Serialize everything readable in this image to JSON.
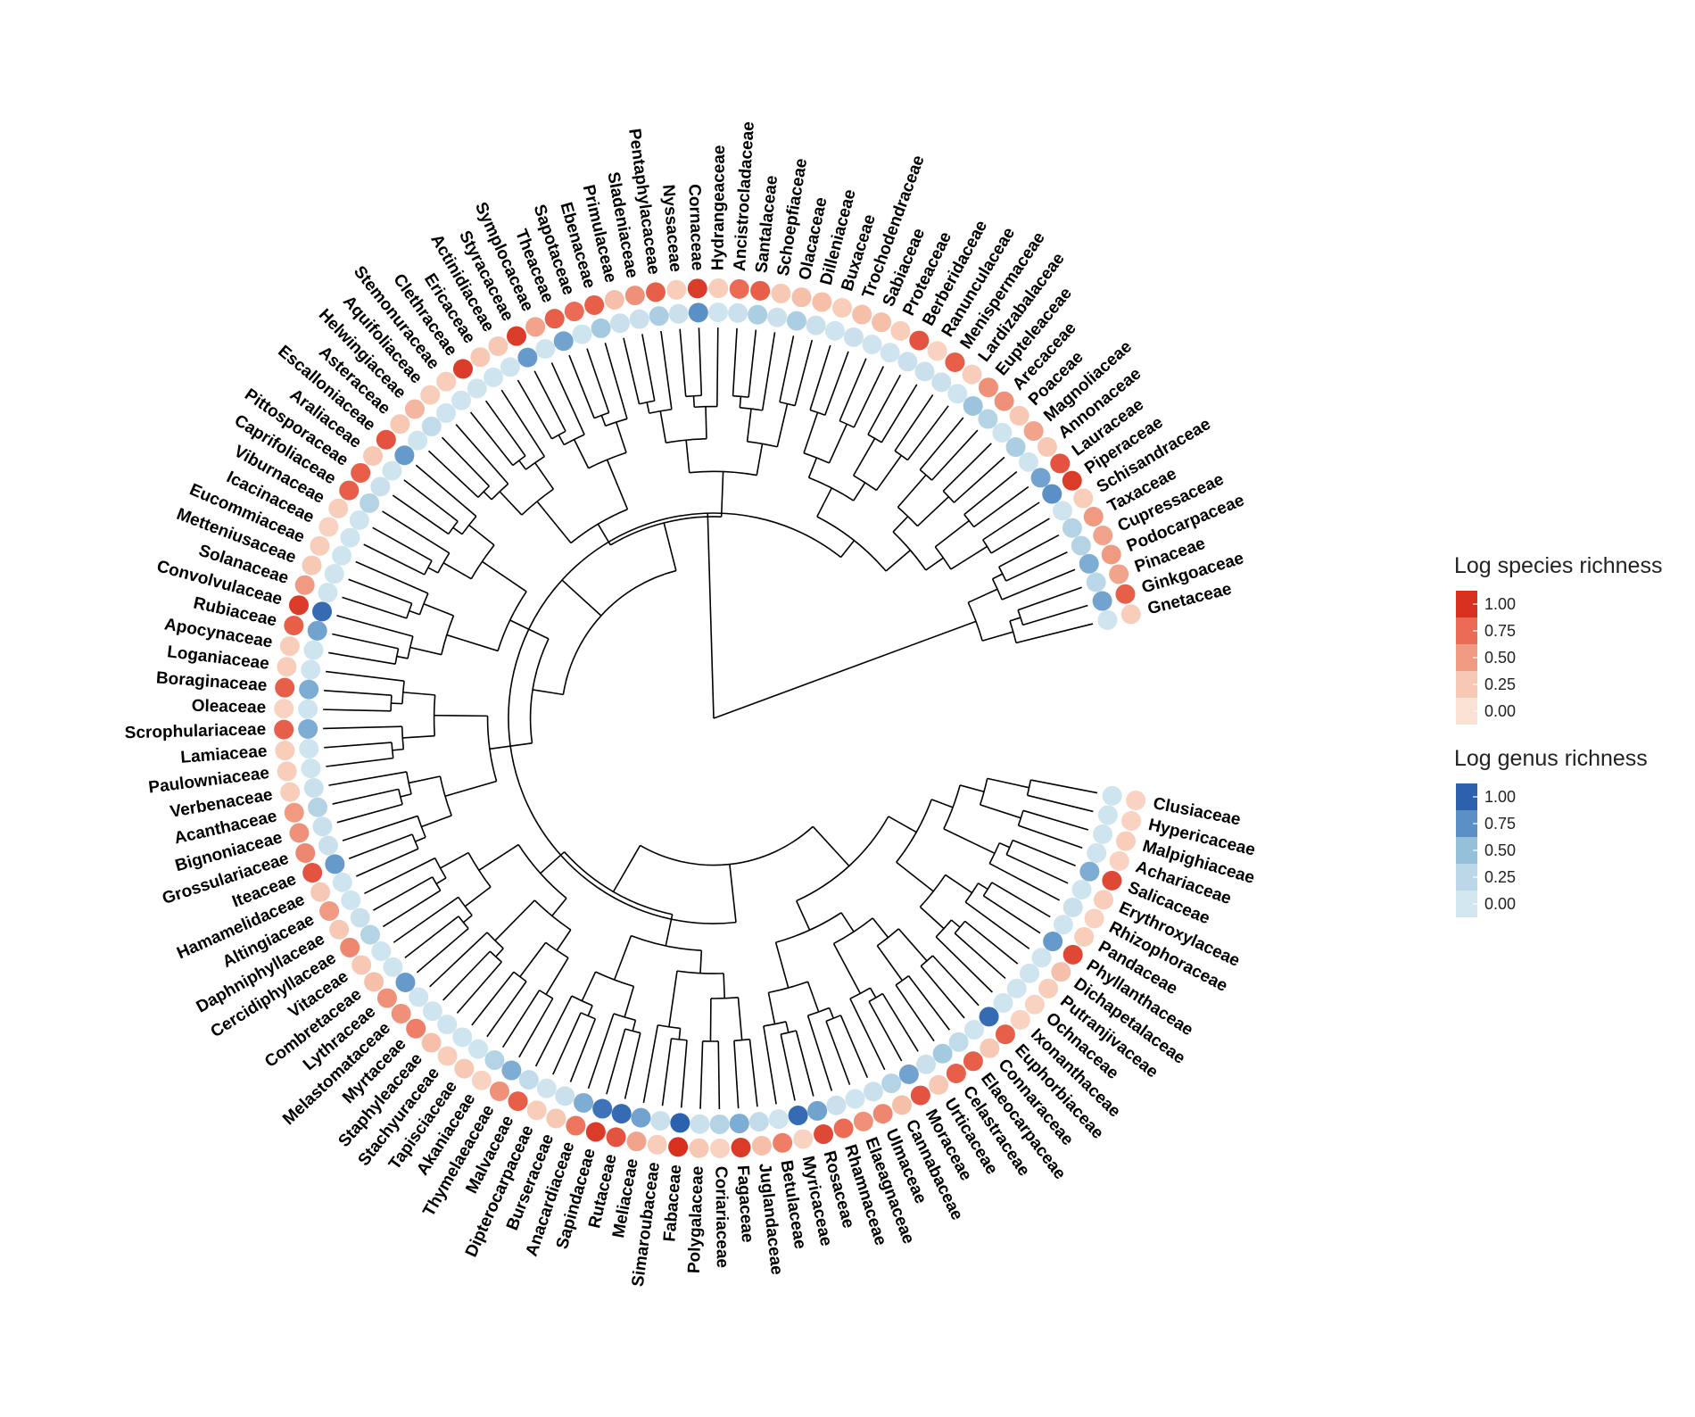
{
  "chart_data": {
    "type": "circular-phylogeny",
    "description_values": "Per family: species = log species richness (0-1 scale), genus = log genus richness (0-1 scale); leaves listed clockwise from the right.",
    "leaves": [
      {
        "name": "Clusiaceae",
        "species": 0.15,
        "genus": 0.05
      },
      {
        "name": "Hypericaceae",
        "species": 0.15,
        "genus": 0.05
      },
      {
        "name": "Malpighiaceae",
        "species": 0.2,
        "genus": 0.05
      },
      {
        "name": "Achariaceae",
        "species": 0.15,
        "genus": 0.05
      },
      {
        "name": "Salicaceae",
        "species": 0.9,
        "genus": 0.6
      },
      {
        "name": "Erythroxylaceae",
        "species": 0.2,
        "genus": 0.05
      },
      {
        "name": "Rhizophoraceae",
        "species": 0.15,
        "genus": 0.1
      },
      {
        "name": "Pandaceae",
        "species": 0.2,
        "genus": 0.05
      },
      {
        "name": "Phyllanthaceae",
        "species": 0.9,
        "genus": 0.7
      },
      {
        "name": "Dichapetalaceae",
        "species": 0.3,
        "genus": 0.05
      },
      {
        "name": "Putranjivaceae",
        "species": 0.2,
        "genus": 0.05
      },
      {
        "name": "Ochnaceae",
        "species": 0.15,
        "genus": 0.05
      },
      {
        "name": "Ixonanthaceae",
        "species": 0.15,
        "genus": 0.05
      },
      {
        "name": "Euphorbiaceae",
        "species": 0.8,
        "genus": 0.95
      },
      {
        "name": "Connaraceae",
        "species": 0.25,
        "genus": 0.05
      },
      {
        "name": "Elaeocarpaceae",
        "species": 0.8,
        "genus": 0.2
      },
      {
        "name": "Celastraceae",
        "species": 0.8,
        "genus": 0.4
      },
      {
        "name": "Urticaceae",
        "species": 0.25,
        "genus": 0.1
      },
      {
        "name": "Moraceae",
        "species": 0.85,
        "genus": 0.65
      },
      {
        "name": "Cannabaceae",
        "species": 0.3,
        "genus": 0.3
      },
      {
        "name": "Ulmaceae",
        "species": 0.6,
        "genus": 0.1
      },
      {
        "name": "Elaeagnaceae",
        "species": 0.55,
        "genus": 0.05
      },
      {
        "name": "Rhamnaceae",
        "species": 0.75,
        "genus": 0.1
      },
      {
        "name": "Rosaceae",
        "species": 0.9,
        "genus": 0.65
      },
      {
        "name": "Myricaceae",
        "species": 0.15,
        "genus": 0.95
      },
      {
        "name": "Betulaceae",
        "species": 0.65,
        "genus": 0.05
      },
      {
        "name": "Juglandaceae",
        "species": 0.3,
        "genus": 0.2
      },
      {
        "name": "Fagaceae",
        "species": 0.95,
        "genus": 0.6
      },
      {
        "name": "Coriariaceae",
        "species": 0.15,
        "genus": 0.3
      },
      {
        "name": "Polygalaceae",
        "species": 0.25,
        "genus": 0.1
      },
      {
        "name": "Fabaceae",
        "species": 1.0,
        "genus": 1.0
      },
      {
        "name": "Simaroubaceae",
        "species": 0.2,
        "genus": 0.1
      },
      {
        "name": "Meliaceae",
        "species": 0.45,
        "genus": 0.65
      },
      {
        "name": "Rutaceae",
        "species": 0.85,
        "genus": 0.95
      },
      {
        "name": "Sapindaceae",
        "species": 0.95,
        "genus": 0.9
      },
      {
        "name": "Anacardiaceae",
        "species": 0.7,
        "genus": 0.6
      },
      {
        "name": "Burseraceae",
        "species": 0.25,
        "genus": 0.1
      },
      {
        "name": "Dipterocarpaceae",
        "species": 0.2,
        "genus": 0.05
      },
      {
        "name": "Malvaceae",
        "species": 0.8,
        "genus": 0.2
      },
      {
        "name": "Thymelaeaceae",
        "species": 0.55,
        "genus": 0.6
      },
      {
        "name": "Akaniaceae",
        "species": 0.15,
        "genus": 0.3
      },
      {
        "name": "Tapisciaceae",
        "species": 0.25,
        "genus": 0.05
      },
      {
        "name": "Stachyuraceae",
        "species": 0.2,
        "genus": 0.05
      },
      {
        "name": "Staphyleaceae",
        "species": 0.3,
        "genus": 0.05
      },
      {
        "name": "Myrtaceae",
        "species": 0.65,
        "genus": 0.05
      },
      {
        "name": "Melastomataceae",
        "species": 0.55,
        "genus": 0.05
      },
      {
        "name": "Lythraceae",
        "species": 0.55,
        "genus": 0.7
      },
      {
        "name": "Combretaceae",
        "species": 0.3,
        "genus": 0.05
      },
      {
        "name": "Vitaceae",
        "species": 0.25,
        "genus": 0.05
      },
      {
        "name": "Cercidiphyllaceae",
        "species": 0.6,
        "genus": 0.3
      },
      {
        "name": "Daphniphyllaceae",
        "species": 0.25,
        "genus": 0.1
      },
      {
        "name": "Altingiaceae",
        "species": 0.5,
        "genus": 0.05
      },
      {
        "name": "Hamamelidaceae",
        "species": 0.25,
        "genus": 0.05
      },
      {
        "name": "Iteaceae",
        "species": 0.85,
        "genus": 0.7
      },
      {
        "name": "Grossulariaceae",
        "species": 0.6,
        "genus": 0.1
      },
      {
        "name": "Bignoniaceae",
        "species": 0.55,
        "genus": 0.1
      },
      {
        "name": "Acanthaceae",
        "species": 0.5,
        "genus": 0.3
      },
      {
        "name": "Verbenaceae",
        "species": 0.2,
        "genus": 0.1
      },
      {
        "name": "Paulowniaceae",
        "species": 0.2,
        "genus": 0.05
      },
      {
        "name": "Lamiaceae",
        "species": 0.2,
        "genus": 0.05
      },
      {
        "name": "Scrophulariaceae",
        "species": 0.8,
        "genus": 0.6
      },
      {
        "name": "Oleaceae",
        "species": 0.15,
        "genus": 0.05
      },
      {
        "name": "Boraginaceae",
        "species": 0.8,
        "genus": 0.6
      },
      {
        "name": "Loganiaceae",
        "species": 0.2,
        "genus": 0.05
      },
      {
        "name": "Apocynaceae",
        "species": 0.2,
        "genus": 0.05
      },
      {
        "name": "Rubiaceae",
        "species": 0.8,
        "genus": 0.65
      },
      {
        "name": "Convolvulaceae",
        "species": 0.95,
        "genus": 0.95
      },
      {
        "name": "Solanaceae",
        "species": 0.5,
        "genus": 0.05
      },
      {
        "name": "Metteniusaceae",
        "species": 0.25,
        "genus": 0.05
      },
      {
        "name": "Eucommiaceae",
        "species": 0.2,
        "genus": 0.05
      },
      {
        "name": "Icacinaceae",
        "species": 0.15,
        "genus": 0.05
      },
      {
        "name": "Viburnaceae",
        "species": 0.2,
        "genus": 0.05
      },
      {
        "name": "Caprifoliaceae",
        "species": 0.8,
        "genus": 0.3
      },
      {
        "name": "Pittosporaceae",
        "species": 0.8,
        "genus": 0.1
      },
      {
        "name": "Araliaceae",
        "species": 0.25,
        "genus": 0.05
      },
      {
        "name": "Escalloniaceae",
        "species": 0.85,
        "genus": 0.7
      },
      {
        "name": "Asteraceae",
        "species": 0.25,
        "genus": 0.05
      },
      {
        "name": "Helwingiaceae",
        "species": 0.35,
        "genus": 0.2
      },
      {
        "name": "Aquifoliaceae",
        "species": 0.2,
        "genus": 0.05
      },
      {
        "name": "Stemonuraceae",
        "species": 0.2,
        "genus": 0.05
      },
      {
        "name": "Clethraceae",
        "species": 0.95,
        "genus": 0.05
      },
      {
        "name": "Ericaceae",
        "species": 0.25,
        "genus": 0.05
      },
      {
        "name": "Actinidiaceae",
        "species": 0.25,
        "genus": 0.05
      },
      {
        "name": "Styracaceae",
        "species": 0.95,
        "genus": 0.7
      },
      {
        "name": "Symplocaceae",
        "species": 0.45,
        "genus": 0.05
      },
      {
        "name": "Theaceae",
        "species": 0.8,
        "genus": 0.65
      },
      {
        "name": "Sapotaceae",
        "species": 0.75,
        "genus": 0.05
      },
      {
        "name": "Ebenaceae",
        "species": 0.8,
        "genus": 0.4
      },
      {
        "name": "Primulaceae",
        "species": 0.3,
        "genus": 0.1
      },
      {
        "name": "Sladeniaceae",
        "species": 0.55,
        "genus": 0.1
      },
      {
        "name": "Pentaphylacaceae",
        "species": 0.8,
        "genus": 0.35
      },
      {
        "name": "Nyssaceae",
        "species": 0.2,
        "genus": 0.1
      },
      {
        "name": "Cornaceae",
        "species": 0.95,
        "genus": 0.75
      },
      {
        "name": "Hydrangeaceae",
        "species": 0.2,
        "genus": 0.05
      },
      {
        "name": "Ancistrocladaceae",
        "species": 0.75,
        "genus": 0.1
      },
      {
        "name": "Santalaceae",
        "species": 0.8,
        "genus": 0.35
      },
      {
        "name": "Schoepfiaceae",
        "species": 0.25,
        "genus": 0.1
      },
      {
        "name": "Olacaceae",
        "species": 0.3,
        "genus": 0.35
      },
      {
        "name": "Dilleniaceae",
        "species": 0.3,
        "genus": 0.1
      },
      {
        "name": "Buxaceae",
        "species": 0.2,
        "genus": 0.05
      },
      {
        "name": "Trochodendraceae",
        "species": 0.3,
        "genus": 0.1
      },
      {
        "name": "Sabiaceae",
        "species": 0.3,
        "genus": 0.05
      },
      {
        "name": "Proteaceae",
        "species": 0.2,
        "genus": 0.05
      },
      {
        "name": "Berberidaceae",
        "species": 0.85,
        "genus": 0.1
      },
      {
        "name": "Ranunculaceae",
        "species": 0.15,
        "genus": 0.1
      },
      {
        "name": "Menispermaceae",
        "species": 0.8,
        "genus": 0.1
      },
      {
        "name": "Lardizabalaceae",
        "species": 0.2,
        "genus": 0.05
      },
      {
        "name": "Eupteleaceae",
        "species": 0.55,
        "genus": 0.45
      },
      {
        "name": "Arecaceae",
        "species": 0.55,
        "genus": 0.3
      },
      {
        "name": "Poaceae",
        "species": 0.25,
        "genus": 0.05
      },
      {
        "name": "Magnoliaceae",
        "species": 0.45,
        "genus": 0.35
      },
      {
        "name": "Annonaceae",
        "species": 0.25,
        "genus": 0.05
      },
      {
        "name": "Lauraceae",
        "species": 0.85,
        "genus": 0.65
      },
      {
        "name": "Piperaceae",
        "species": 0.95,
        "genus": 0.75
      },
      {
        "name": "Schisandraceae",
        "species": 0.2,
        "genus": 0.05
      },
      {
        "name": "Taxaceae",
        "species": 0.5,
        "genus": 0.3
      },
      {
        "name": "Cupressaceae",
        "species": 0.45,
        "genus": 0.3
      },
      {
        "name": "Podocarpaceae",
        "species": 0.5,
        "genus": 0.6
      },
      {
        "name": "Pinaceae",
        "species": 0.45,
        "genus": 0.25
      },
      {
        "name": "Ginkgoaceae",
        "species": 0.8,
        "genus": 0.65
      },
      {
        "name": "Gnetaceae",
        "species": 0.2,
        "genus": 0.05
      }
    ],
    "legend_species": {
      "title": "Log species richness",
      "ticks": [
        "1.00",
        "0.75",
        "0.50",
        "0.25",
        "0.00"
      ],
      "colors": [
        "#d7301f",
        "#ec6b54",
        "#f09a82",
        "#f7c8b4",
        "#fbe0d4"
      ]
    },
    "legend_genus": {
      "title": "Log genus richness",
      "ticks": [
        "1.00",
        "0.75",
        "0.50",
        "0.25",
        "0.00"
      ],
      "colors": [
        "#2c62ad",
        "#5a90c6",
        "#94c0da",
        "#bcd8e8",
        "#d3e7f1"
      ]
    }
  }
}
